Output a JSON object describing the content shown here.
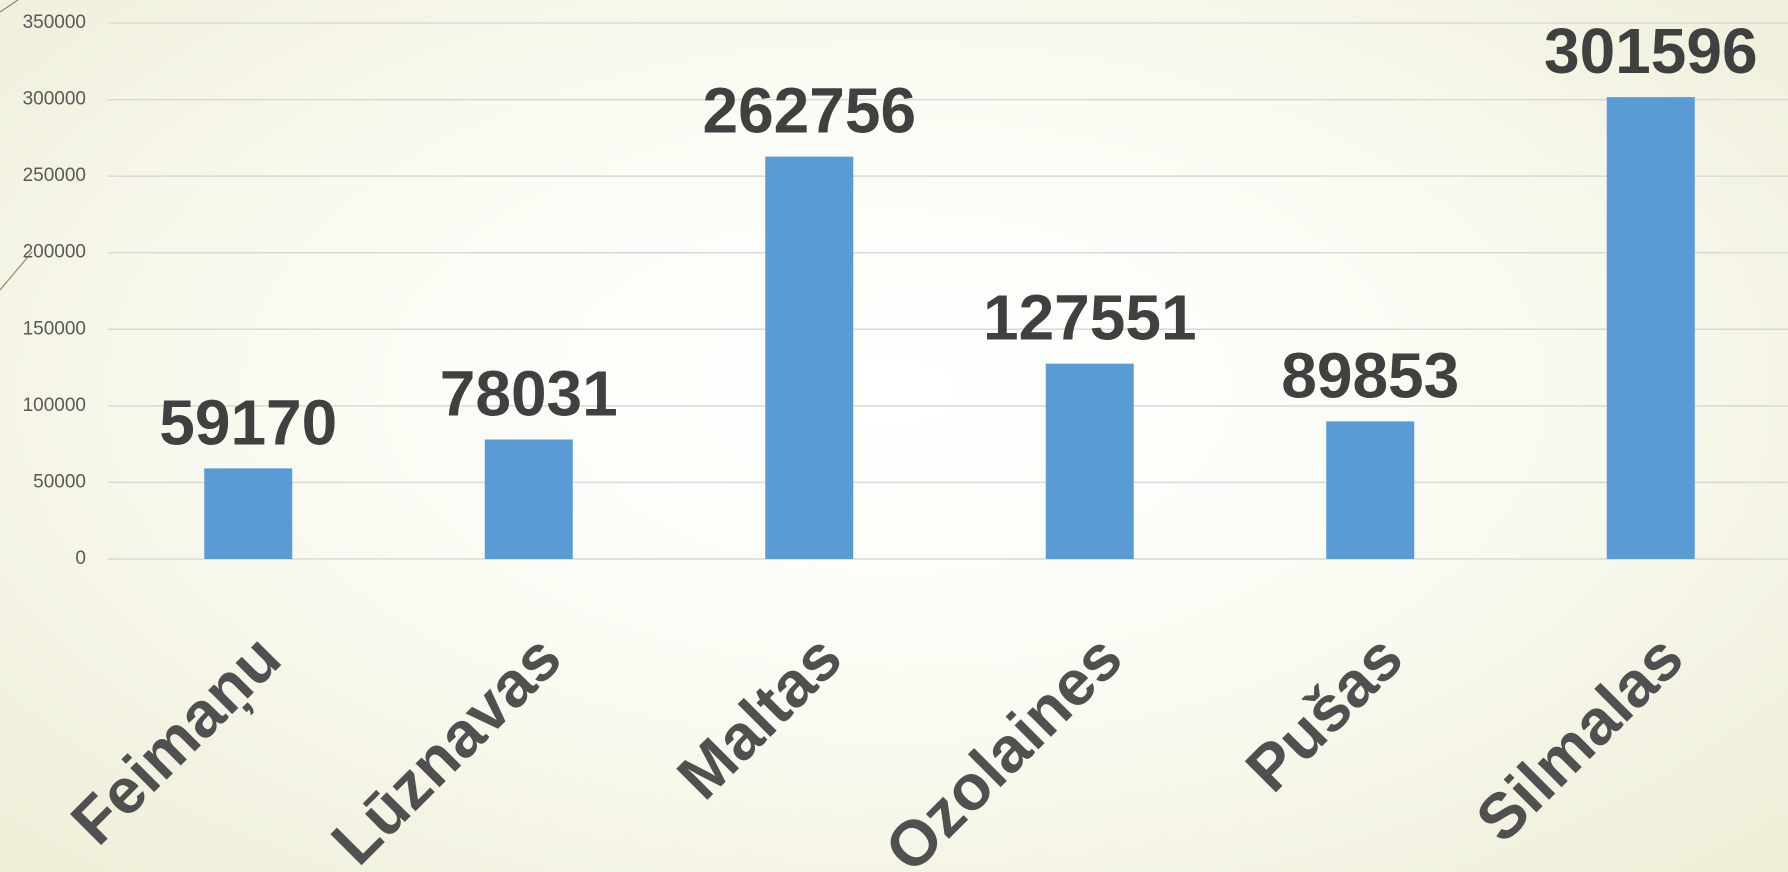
{
  "chart_data": {
    "type": "bar",
    "categories": [
      "Feimaņu",
      "Lūznavas",
      "Maltas",
      "Ozolaines",
      "Pušas",
      "Silmalas"
    ],
    "values": [
      59170,
      78031,
      262756,
      127551,
      89853,
      301596
    ],
    "color": "#5b9bd5",
    "ylim": [
      0,
      350000
    ],
    "yticks": [
      0,
      50000,
      100000,
      150000,
      200000,
      250000,
      300000,
      350000
    ],
    "grid": true
  }
}
